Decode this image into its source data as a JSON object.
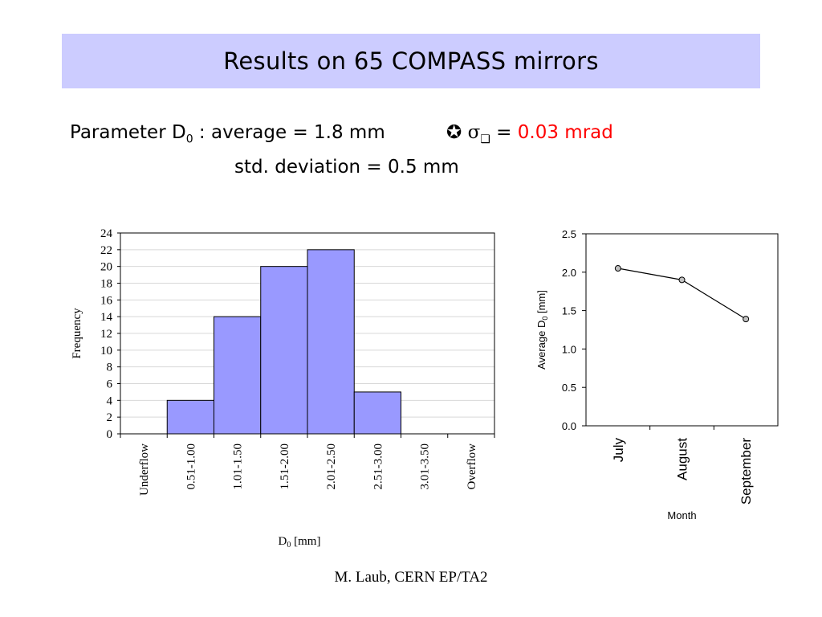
{
  "slide": {
    "title": "Results on 65 COMPASS mirrors",
    "param_line1_prefix": "Parameter D",
    "param_sub": "0",
    "param_line1_mid": " : average = 1.8 mm",
    "star_symbol": "✪",
    "sigma_symbol": "σ",
    "box_symbol": "❑",
    "equals": "=",
    "sigma_value": "0.03 mrad",
    "param_line2": "std. deviation =  0.5 mm",
    "footer": "M. Laub, CERN EP/TA2"
  },
  "colors": {
    "title_bar": "#ccccff",
    "bar_fill": "#9999ff",
    "highlight": "#ff0000",
    "marker_fill": "#c0c0c0"
  },
  "chart_data": [
    {
      "type": "bar",
      "categories": [
        "Underflow",
        "0.51-1.00",
        "1.01-1.50",
        "1.51-2.00",
        "2.01-2.50",
        "2.51-3.00",
        "3.01-3.50",
        "Overflow"
      ],
      "values": [
        0,
        4,
        14,
        20,
        22,
        5,
        0,
        0
      ],
      "xlabel_main": "D",
      "xlabel_sub": "0",
      "xlabel_unit": " [mm]",
      "ylabel": "Frequency",
      "ylim": [
        0,
        24
      ],
      "yticks": [
        0,
        2,
        4,
        6,
        8,
        10,
        12,
        14,
        16,
        18,
        20,
        22,
        24
      ],
      "grid": true,
      "legend": "none"
    },
    {
      "type": "line",
      "categories": [
        "July",
        "August",
        "September"
      ],
      "values": [
        2.05,
        1.9,
        1.39
      ],
      "xlabel": "Month",
      "ylabel_main": "Average D",
      "ylabel_sub": "0",
      "ylabel_unit": " [mm]",
      "ylim": [
        0,
        2.5
      ],
      "yticks": [
        "0.0",
        "0.5",
        "1.0",
        "1.5",
        "2.0",
        "2.5"
      ],
      "grid": false,
      "legend": "none"
    }
  ]
}
